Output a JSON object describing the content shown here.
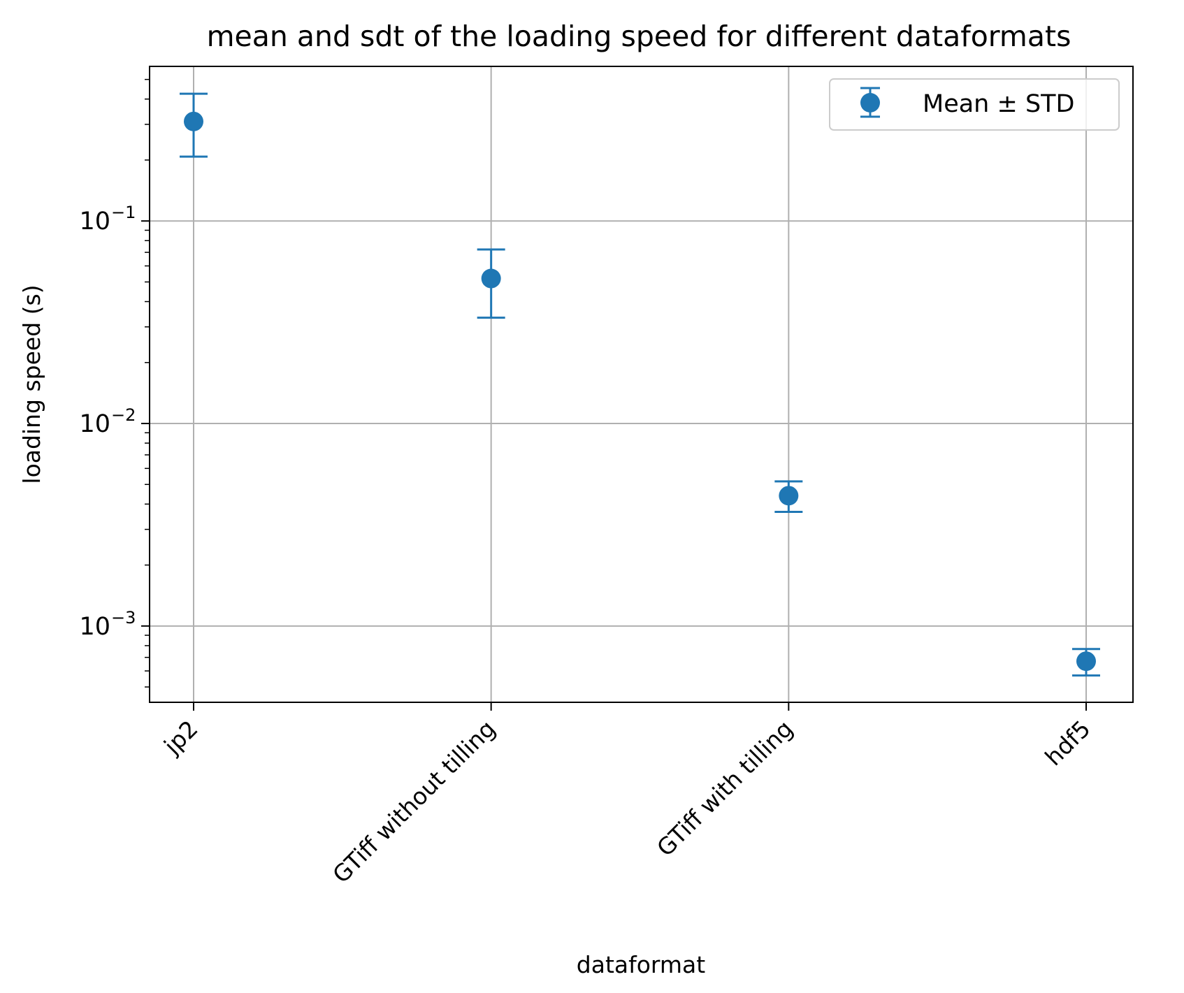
{
  "chart_data": {
    "type": "scatter",
    "title": "mean and sdt of the loading speed for different dataformats",
    "xlabel": "dataformat",
    "ylabel": "loading speed (s)",
    "yscale": "log",
    "ylim": [
      0.00042,
      0.58
    ],
    "grid": true,
    "legend_position": "top-right",
    "categories": [
      "jp2",
      "GTiff without tilling",
      "GTiff with tilling",
      "hdf5"
    ],
    "series": [
      {
        "name": "Mean ± STD",
        "color": "#1f77b4",
        "mean": [
          0.31,
          0.052,
          0.0044,
          0.00067
        ],
        "lower": [
          0.208,
          0.0333,
          0.00366,
          0.00057
        ],
        "upper": [
          0.425,
          0.0723,
          0.00518,
          0.00077
        ]
      }
    ],
    "y_ticks": [
      {
        "value": 0.1,
        "base": "10",
        "exp": "−1"
      },
      {
        "value": 0.01,
        "base": "10",
        "exp": "−2"
      },
      {
        "value": 0.001,
        "base": "10",
        "exp": "−3"
      }
    ]
  }
}
